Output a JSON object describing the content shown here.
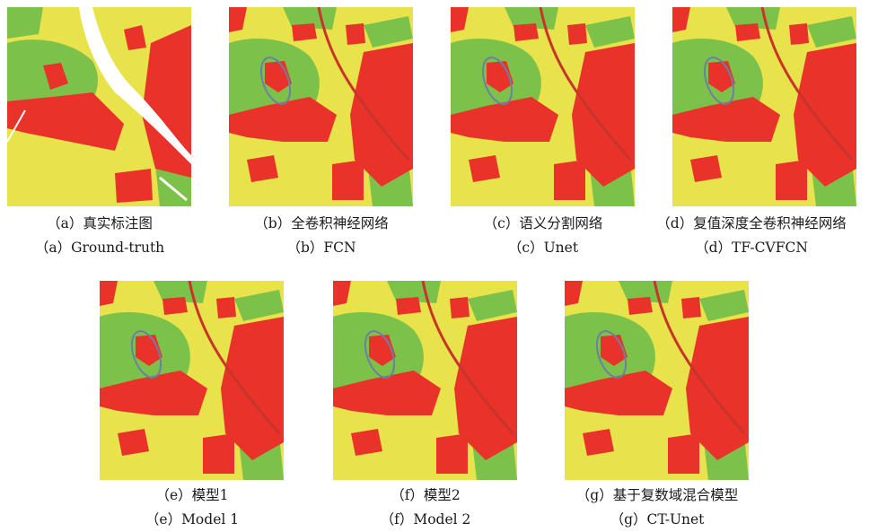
{
  "panels": [
    {
      "id": "a",
      "zh": "（a）真实标注图",
      "en": "（a）Ground-truth"
    },
    {
      "id": "b",
      "zh": "（b）全卷积神经网络",
      "en": "（b）FCN"
    },
    {
      "id": "c",
      "zh": "（c）语义分割网络",
      "en": "（c）Unet"
    },
    {
      "id": "d",
      "zh": "（d）复值深度全卷积神经网络",
      "en": "（d）TF-CVFCN"
    },
    {
      "id": "e",
      "zh": "（e）模型1",
      "en": "（e）Model 1"
    },
    {
      "id": "f",
      "zh": "（f）模型2",
      "en": "（f）Model 2"
    },
    {
      "id": "g",
      "zh": "（g）基于复数域混合模型",
      "en": "（g）CT-Unet"
    }
  ],
  "colors": {
    "yellow": "#e8e34a",
    "red": "#e8322a",
    "green": "#7cc24a",
    "white": "#ffffff",
    "ellipse": "#6d7fa6"
  }
}
